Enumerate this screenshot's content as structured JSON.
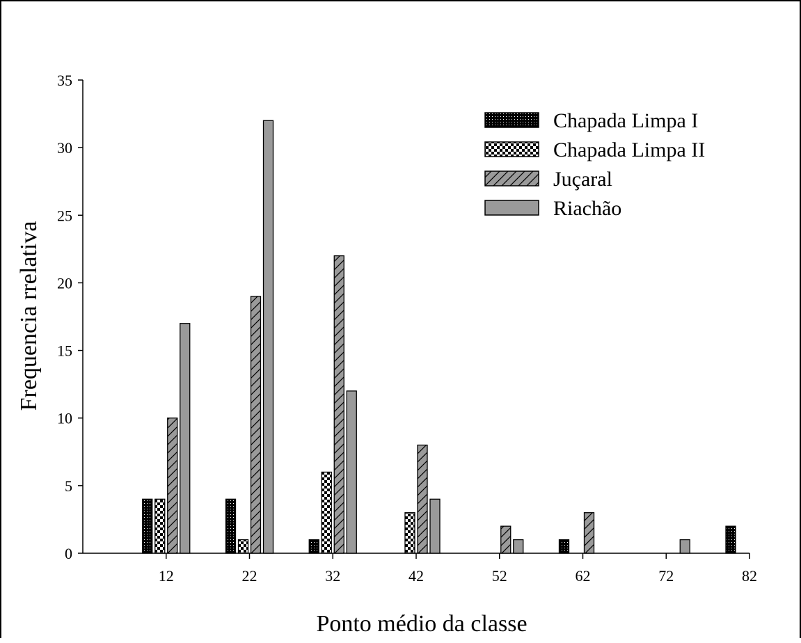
{
  "chart_data": {
    "type": "bar",
    "xlabel": "Ponto médio da classe",
    "ylabel": "Frequencia rrelativa",
    "ylim": [
      0,
      35
    ],
    "yticks": [
      "0",
      "5",
      "10",
      "15",
      "20",
      "25",
      "30",
      "35"
    ],
    "xlim": [
      2,
      82
    ],
    "xticks": [
      "12",
      "22",
      "32",
      "42",
      "52",
      "62",
      "72",
      "82"
    ],
    "grid": false,
    "legend_position": "top-right",
    "categories": [
      "12",
      "22",
      "32",
      "42",
      "52",
      "62",
      "72",
      "82"
    ],
    "series": [
      {
        "name": "Chapada Limpa I",
        "pattern": "dots",
        "color": "#000000",
        "values": [
          4,
          4,
          1,
          0,
          0,
          1,
          0,
          2
        ]
      },
      {
        "name": "Chapada Limpa II",
        "pattern": "checker",
        "color": "#000000",
        "values": [
          4,
          1,
          6,
          3,
          0,
          0,
          0,
          0
        ]
      },
      {
        "name": "Juçaral",
        "pattern": "diagonal",
        "color": "#9a9a9a",
        "values": [
          10,
          19,
          22,
          8,
          2,
          3,
          0,
          0
        ]
      },
      {
        "name": "Riachão",
        "pattern": "solid",
        "color": "#9a9a9a",
        "values": [
          17,
          32,
          12,
          4,
          1,
          0,
          1,
          0
        ]
      }
    ]
  }
}
